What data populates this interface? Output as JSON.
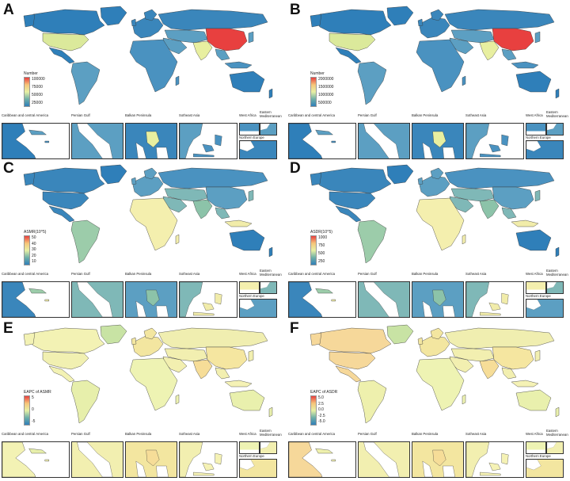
{
  "panels": [
    {
      "letter": "A",
      "legend_title": "Number",
      "ticks": [
        "100000",
        "75000",
        "50000",
        "25000"
      ],
      "colors": {
        "ocean": "#ffffff",
        "na": "#2f7fb9",
        "sa": "#5c9fc2",
        "eu": "#3a86bb",
        "af": "#4a92c0",
        "asia": "#5c9fc2",
        "ru": "#3a86bb",
        "cn": "#e8403f",
        "in": "#e8efa0",
        "us": "#dbe99b",
        "au": "#2f7fb9",
        "gl": "#2f7fb9",
        "ins": "#4a92c0"
      }
    },
    {
      "letter": "B",
      "legend_title": "Number",
      "ticks": [
        "2000000",
        "1500000",
        "1000000",
        "500000"
      ],
      "colors": {
        "ocean": "#ffffff",
        "na": "#2f7fb9",
        "sa": "#5c9fc2",
        "eu": "#3a86bb",
        "af": "#4a92c0",
        "asia": "#5c9fc2",
        "ru": "#3a86bb",
        "cn": "#e8403f",
        "in": "#e8efa0",
        "us": "#dbe99b",
        "au": "#2f7fb9",
        "gl": "#2f7fb9",
        "ins": "#4a92c0"
      }
    },
    {
      "letter": "C",
      "legend_title": "ASMR(10^5)",
      "ticks": [
        "50",
        "40",
        "30",
        "20",
        "10"
      ],
      "colors": {
        "ocean": "#ffffff",
        "na": "#3a86bb",
        "sa": "#9cccaa",
        "eu": "#5c9fc2",
        "af": "#f4efae",
        "asia": "#7fb8b7",
        "ru": "#4a92c0",
        "cn": "#5c9fc2",
        "in": "#8cc3a9",
        "us": "#3a86bb",
        "au": "#2f7fb9",
        "gl": "#2f7fb9",
        "ins": "#f1ecaa"
      }
    },
    {
      "letter": "D",
      "legend_title": "ASDR(10^5)",
      "ticks": [
        "1000",
        "750",
        "500",
        "250"
      ],
      "colors": {
        "ocean": "#ffffff",
        "na": "#3a86bb",
        "sa": "#9cccaa",
        "eu": "#5c9fc2",
        "af": "#f4efae",
        "asia": "#7fb8b7",
        "ru": "#4a92c0",
        "cn": "#5c9fc2",
        "in": "#8cc3a9",
        "us": "#3a86bb",
        "au": "#2f7fb9",
        "gl": "#2f7fb9",
        "ins": "#f1ecaa"
      }
    },
    {
      "letter": "E",
      "legend_title": "EAPC of ASMR",
      "ticks": [
        "5",
        "0",
        "-5"
      ],
      "colors": {
        "ocean": "#ffffff",
        "na": "#f3f2b4",
        "sa": "#e7efab",
        "eu": "#f3e6a0",
        "af": "#eef3b3",
        "asia": "#f2efb0",
        "ru": "#f0eeb0",
        "cn": "#f5e6a0",
        "in": "#f6dd98",
        "us": "#f1f0b1",
        "au": "#e9f0ad",
        "gl": "#c8e3a4",
        "ins": "#f5f2b5"
      }
    },
    {
      "letter": "F",
      "legend_title": "EAPC of ASDR",
      "ticks": [
        "5.0",
        "2.5",
        "0.0",
        "-2.5",
        "-5.0"
      ],
      "colors": {
        "ocean": "#ffffff",
        "na": "#f6d89a",
        "sa": "#eef0ad",
        "eu": "#f3e6a0",
        "af": "#eef3b3",
        "asia": "#f2efb0",
        "ru": "#f0eeb0",
        "cn": "#f5e6a0",
        "in": "#f6dd98",
        "us": "#f6d89a",
        "au": "#e9f0ad",
        "gl": "#c8e3a4",
        "ins": "#f5f2b5"
      }
    }
  ],
  "inset_labels": {
    "caribbean": "Caribbean and central America",
    "persian": "Persian Gulf",
    "balkan": "Balkan Peninsula",
    "seasia": "Sotheast Asia",
    "wafrica": "West Africa",
    "emed": "Eastern\nMediterranean",
    "neurope": "Northern Europe"
  },
  "gradient": [
    "#2f7fb9",
    "#6fb0a8",
    "#e7f0a4",
    "#f6c57a",
    "#e8403f"
  ]
}
